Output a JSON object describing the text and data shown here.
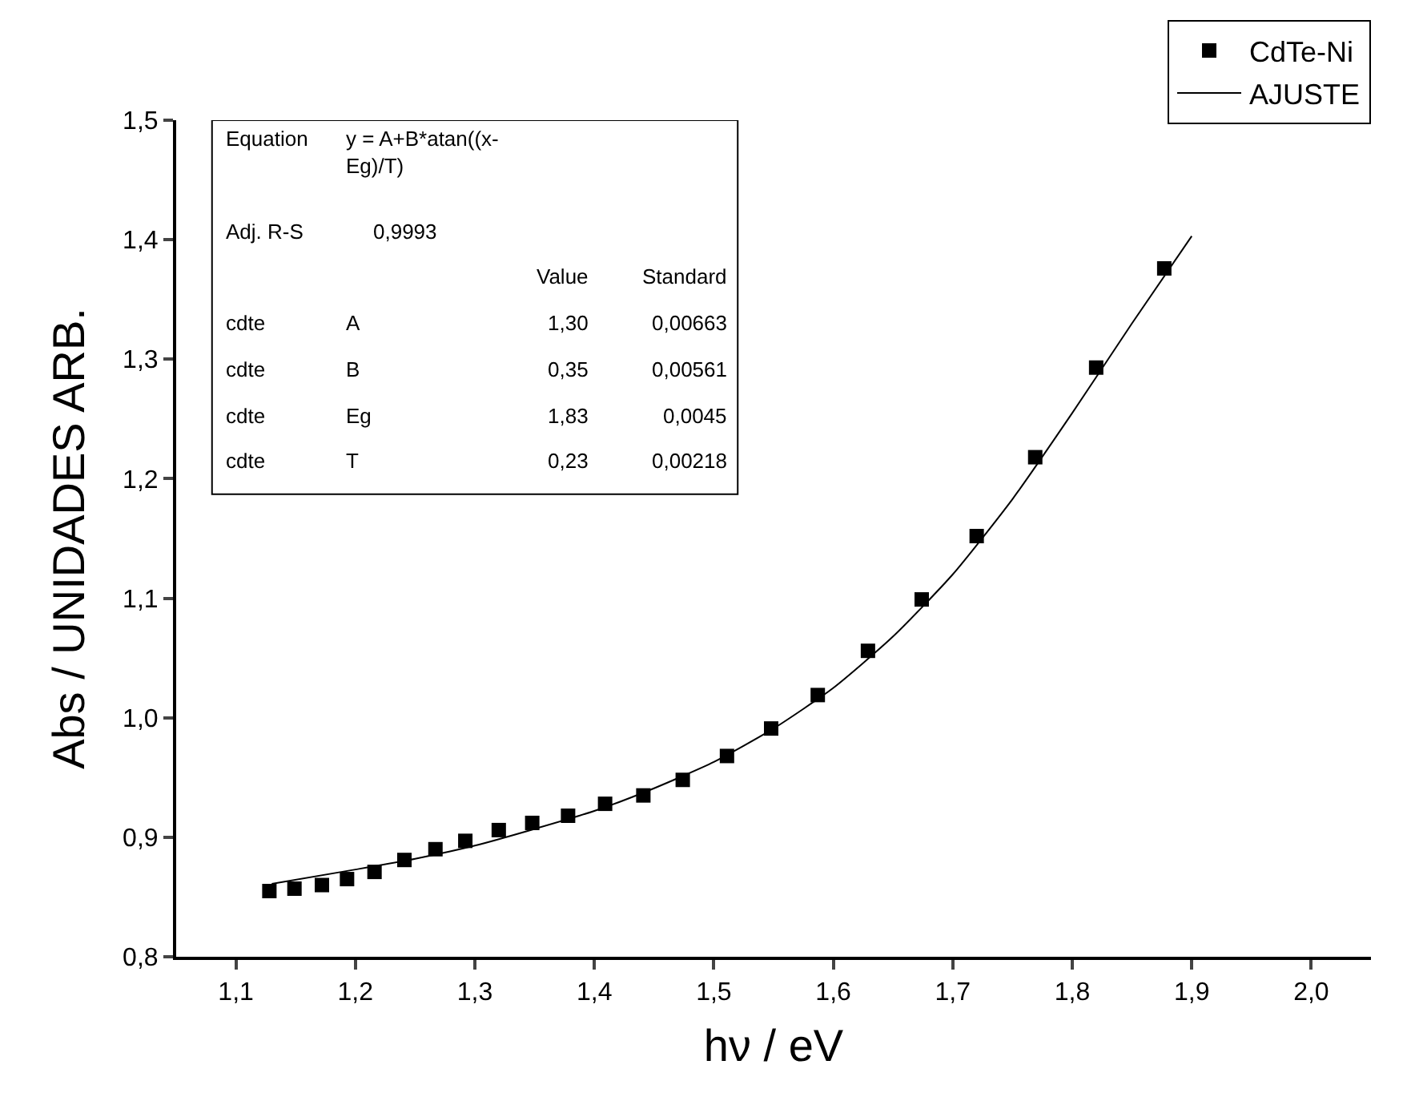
{
  "chart_data": {
    "type": "scatter",
    "xlabel": "hν / eV",
    "ylabel": "Abs / UNIDADES ARB.",
    "xlim": [
      1.05,
      2.05
    ],
    "ylim": [
      0.8,
      1.5
    ],
    "xticks": [
      {
        "value": 1.1,
        "label": "1,1"
      },
      {
        "value": 1.2,
        "label": "1,2"
      },
      {
        "value": 1.3,
        "label": "1,3"
      },
      {
        "value": 1.4,
        "label": "1,4"
      },
      {
        "value": 1.5,
        "label": "1,5"
      },
      {
        "value": 1.6,
        "label": "1,6"
      },
      {
        "value": 1.7,
        "label": "1,7"
      },
      {
        "value": 1.8,
        "label": "1,8"
      },
      {
        "value": 1.9,
        "label": "1,9"
      },
      {
        "value": 2.0,
        "label": "2,0"
      }
    ],
    "yticks": [
      {
        "value": 0.8,
        "label": "0,8"
      },
      {
        "value": 0.9,
        "label": "0,9"
      },
      {
        "value": 1.0,
        "label": "1,0"
      },
      {
        "value": 1.1,
        "label": "1,1"
      },
      {
        "value": 1.2,
        "label": "1,2"
      },
      {
        "value": 1.3,
        "label": "1,3"
      },
      {
        "value": 1.4,
        "label": "1,4"
      },
      {
        "value": 1.5,
        "label": "1,5"
      }
    ],
    "legend": "top right",
    "series": [
      {
        "name": "CdTe-Ni",
        "color": "#000000",
        "marker": "square",
        "x": [
          1.128,
          1.149,
          1.172,
          1.193,
          1.216,
          1.241,
          1.267,
          1.292,
          1.32,
          1.348,
          1.378,
          1.409,
          1.441,
          1.474,
          1.511,
          1.548,
          1.587,
          1.629,
          1.674,
          1.72,
          1.769,
          1.82,
          1.877
        ],
        "values": [
          0.855,
          0.857,
          0.86,
          0.865,
          0.871,
          0.881,
          0.89,
          0.897,
          0.906,
          0.912,
          0.918,
          0.928,
          0.935,
          0.948,
          0.968,
          0.991,
          1.019,
          1.056,
          1.099,
          1.152,
          1.218,
          1.293,
          1.376
        ]
      },
      {
        "name": "AJUSTE",
        "type": "line",
        "color": "#000000",
        "line_style": "solid",
        "x": [
          1.13,
          1.2,
          1.25,
          1.3,
          1.35,
          1.4,
          1.45,
          1.5,
          1.55,
          1.6,
          1.65,
          1.7,
          1.75,
          1.8,
          1.85,
          1.9
        ],
        "values": [
          0.861,
          0.873,
          0.882,
          0.893,
          0.907,
          0.922,
          0.941,
          0.963,
          0.991,
          1.025,
          1.068,
          1.12,
          1.183,
          1.255,
          1.33,
          1.403
        ]
      }
    ],
    "annotations": [
      "Equation",
      "y = A+B*atan((x-\nEg)/T)",
      "Adj. R-S",
      "0,9993",
      "Value",
      "Standard",
      "cdte",
      "A",
      "1,30",
      "0,00663",
      "cdte",
      "B",
      "0,35",
      "0,00561",
      "cdte",
      "Eg",
      "1,83",
      "0,0045",
      "cdte",
      "T",
      "0,23",
      "0,00218"
    ]
  }
}
